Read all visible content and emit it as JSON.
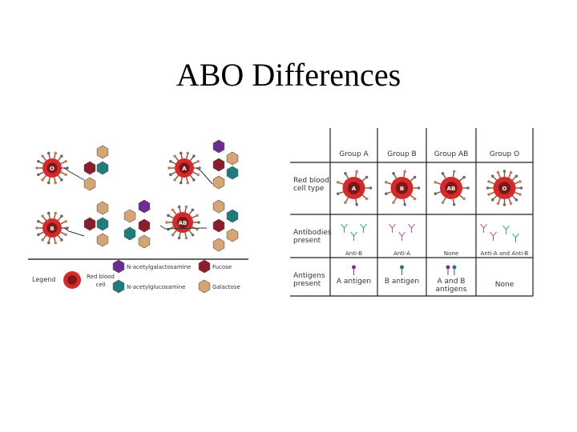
{
  "title": "ABO Differences",
  "diagram": {
    "cells": [
      "O",
      "A",
      "B",
      "AB"
    ],
    "legend": {
      "title": "Legend",
      "items": [
        "Red blood cell",
        "N-acetylgalactosamine",
        "Fucose",
        "N-acetylglucosamine",
        "Galactose"
      ]
    }
  },
  "table": {
    "columns": [
      "Group A",
      "Group B",
      "Group AB",
      "Group O"
    ],
    "rows": [
      {
        "label": "Red blood cell type",
        "cells": [
          "A",
          "B",
          "AB",
          "O"
        ]
      },
      {
        "label": "Antibodies present",
        "cells": [
          "Anti-B",
          "Anti-A",
          "None",
          "Anti-A and Anti-B"
        ]
      },
      {
        "label": "Antigens present",
        "cells": [
          "A antigen",
          "B antigen",
          "A and B antigens",
          "None"
        ]
      }
    ]
  }
}
